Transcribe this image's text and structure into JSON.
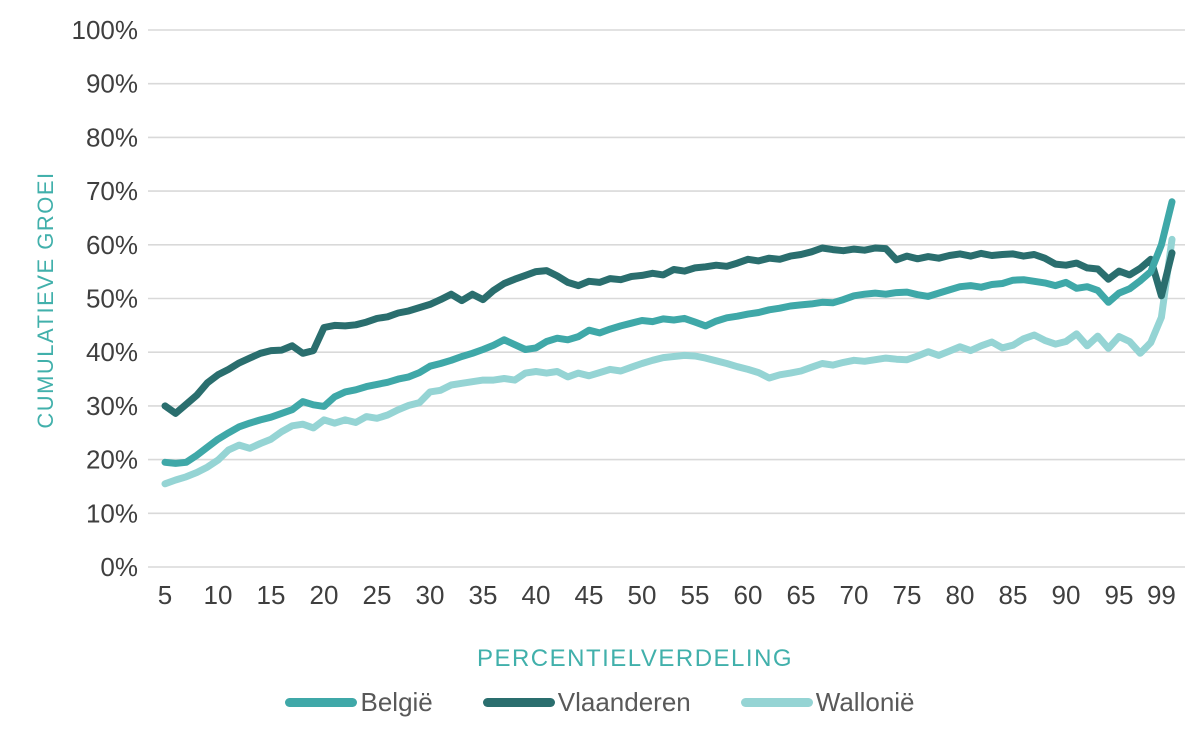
{
  "colors": {
    "background": "#ffffff",
    "gridline": "#d9d9d9",
    "tick_text": "#3f3f3f",
    "axis_title": "#41b0ab",
    "legend_text": "#595959"
  },
  "chart_data": {
    "type": "line",
    "title": "",
    "xlabel": "PERCENTIELVERDELING",
    "ylabel": "CUMULATIEVE GROEI",
    "ylim": [
      0,
      100
    ],
    "grid": "horizontal-only",
    "legend_position": "bottom",
    "ytick_values": [
      0,
      10,
      20,
      30,
      40,
      50,
      60,
      70,
      80,
      90,
      100
    ],
    "ytick_labels": [
      "0%",
      "10%",
      "20%",
      "30%",
      "40%",
      "50%",
      "60%",
      "70%",
      "80%",
      "90%",
      "100%"
    ],
    "xtick_values": [
      5,
      10,
      15,
      20,
      25,
      30,
      35,
      40,
      45,
      50,
      55,
      60,
      65,
      70,
      75,
      80,
      85,
      90,
      95,
      99
    ],
    "xtick_labels": [
      "5",
      "10",
      "15",
      "20",
      "25",
      "30",
      "35",
      "40",
      "45",
      "50",
      "55",
      "60",
      "65",
      "70",
      "75",
      "80",
      "85",
      "90",
      "95",
      "99"
    ],
    "x": [
      5,
      6,
      7,
      8,
      9,
      10,
      11,
      12,
      13,
      14,
      15,
      16,
      17,
      18,
      19,
      20,
      21,
      22,
      23,
      24,
      25,
      26,
      27,
      28,
      29,
      30,
      31,
      32,
      33,
      34,
      35,
      36,
      37,
      38,
      39,
      40,
      41,
      42,
      43,
      44,
      45,
      46,
      47,
      48,
      49,
      50,
      51,
      52,
      53,
      54,
      55,
      56,
      57,
      58,
      59,
      60,
      61,
      62,
      63,
      64,
      65,
      66,
      67,
      68,
      69,
      70,
      71,
      72,
      73,
      74,
      75,
      76,
      77,
      78,
      79,
      80,
      81,
      82,
      83,
      84,
      85,
      86,
      87,
      88,
      89,
      90,
      91,
      92,
      93,
      94,
      95,
      96,
      97,
      98,
      99,
      100
    ],
    "series": [
      {
        "name": "België",
        "color": "#3fa8a8",
        "values": [
          19.5,
          19.3,
          19.5,
          20.8,
          22.3,
          23.8,
          25.0,
          26.1,
          26.8,
          27.4,
          27.9,
          28.6,
          29.3,
          30.8,
          30.2,
          29.9,
          31.7,
          32.6,
          33.0,
          33.6,
          34.0,
          34.4,
          35.0,
          35.4,
          36.2,
          37.4,
          37.9,
          38.5,
          39.2,
          39.8,
          40.5,
          41.3,
          42.3,
          41.4,
          40.5,
          40.8,
          42.0,
          42.6,
          42.3,
          42.9,
          44.1,
          43.6,
          44.3,
          44.9,
          45.4,
          45.9,
          45.7,
          46.2,
          46.0,
          46.3,
          45.6,
          44.9,
          45.8,
          46.4,
          46.7,
          47.1,
          47.4,
          47.9,
          48.2,
          48.6,
          48.8,
          49.0,
          49.3,
          49.2,
          49.8,
          50.5,
          50.8,
          51.0,
          50.8,
          51.1,
          51.2,
          50.7,
          50.4,
          51.0,
          51.6,
          52.2,
          52.4,
          52.1,
          52.6,
          52.8,
          53.4,
          53.5,
          53.2,
          52.9,
          52.4,
          53.0,
          51.9,
          52.2,
          51.5,
          49.3,
          51.0,
          51.8,
          53.3,
          55.0,
          60.0,
          68.0
        ]
      },
      {
        "name": "Vlaanderen",
        "color": "#2a6e6e",
        "values": [
          30.0,
          28.6,
          30.3,
          32.0,
          34.3,
          35.8,
          36.8,
          38.0,
          38.9,
          39.8,
          40.3,
          40.4,
          41.2,
          39.8,
          40.3,
          44.6,
          45.0,
          44.9,
          45.1,
          45.6,
          46.3,
          46.6,
          47.3,
          47.7,
          48.3,
          48.9,
          49.8,
          50.8,
          49.6,
          50.8,
          49.8,
          51.5,
          52.8,
          53.6,
          54.3,
          55.0,
          55.2,
          54.2,
          53.0,
          52.4,
          53.2,
          53.0,
          53.7,
          53.5,
          54.1,
          54.3,
          54.7,
          54.4,
          55.4,
          55.1,
          55.7,
          55.9,
          56.2,
          56.0,
          56.6,
          57.3,
          57.0,
          57.5,
          57.3,
          57.9,
          58.2,
          58.7,
          59.4,
          59.1,
          58.9,
          59.2,
          59.0,
          59.4,
          59.3,
          57.2,
          57.9,
          57.4,
          57.8,
          57.5,
          58.0,
          58.3,
          57.9,
          58.4,
          58.0,
          58.2,
          58.3,
          57.9,
          58.2,
          57.5,
          56.4,
          56.2,
          56.6,
          55.7,
          55.5,
          53.6,
          55.1,
          54.4,
          55.6,
          57.3,
          50.5,
          58.5
        ]
      },
      {
        "name": "Wallonië",
        "color": "#95d4d4",
        "values": [
          15.5,
          16.2,
          16.8,
          17.6,
          18.6,
          19.9,
          21.8,
          22.7,
          22.1,
          23.0,
          23.8,
          25.2,
          26.3,
          26.6,
          25.9,
          27.4,
          26.8,
          27.4,
          26.9,
          28.0,
          27.7,
          28.3,
          29.3,
          30.1,
          30.6,
          32.6,
          32.9,
          33.9,
          34.2,
          34.5,
          34.8,
          34.8,
          35.1,
          34.8,
          36.1,
          36.4,
          36.1,
          36.4,
          35.4,
          36.1,
          35.6,
          36.2,
          36.8,
          36.5,
          37.2,
          37.9,
          38.5,
          39.0,
          39.2,
          39.4,
          39.3,
          38.9,
          38.4,
          37.9,
          37.3,
          36.8,
          36.2,
          35.2,
          35.8,
          36.1,
          36.5,
          37.2,
          37.9,
          37.6,
          38.1,
          38.5,
          38.3,
          38.6,
          38.9,
          38.7,
          38.6,
          39.3,
          40.1,
          39.4,
          40.2,
          41.0,
          40.3,
          41.2,
          41.9,
          40.8,
          41.3,
          42.5,
          43.2,
          42.2,
          41.5,
          42.0,
          43.4,
          41.2,
          43.0,
          40.7,
          42.9,
          42.0,
          39.8,
          41.8,
          46.5,
          61.0
        ]
      }
    ]
  }
}
